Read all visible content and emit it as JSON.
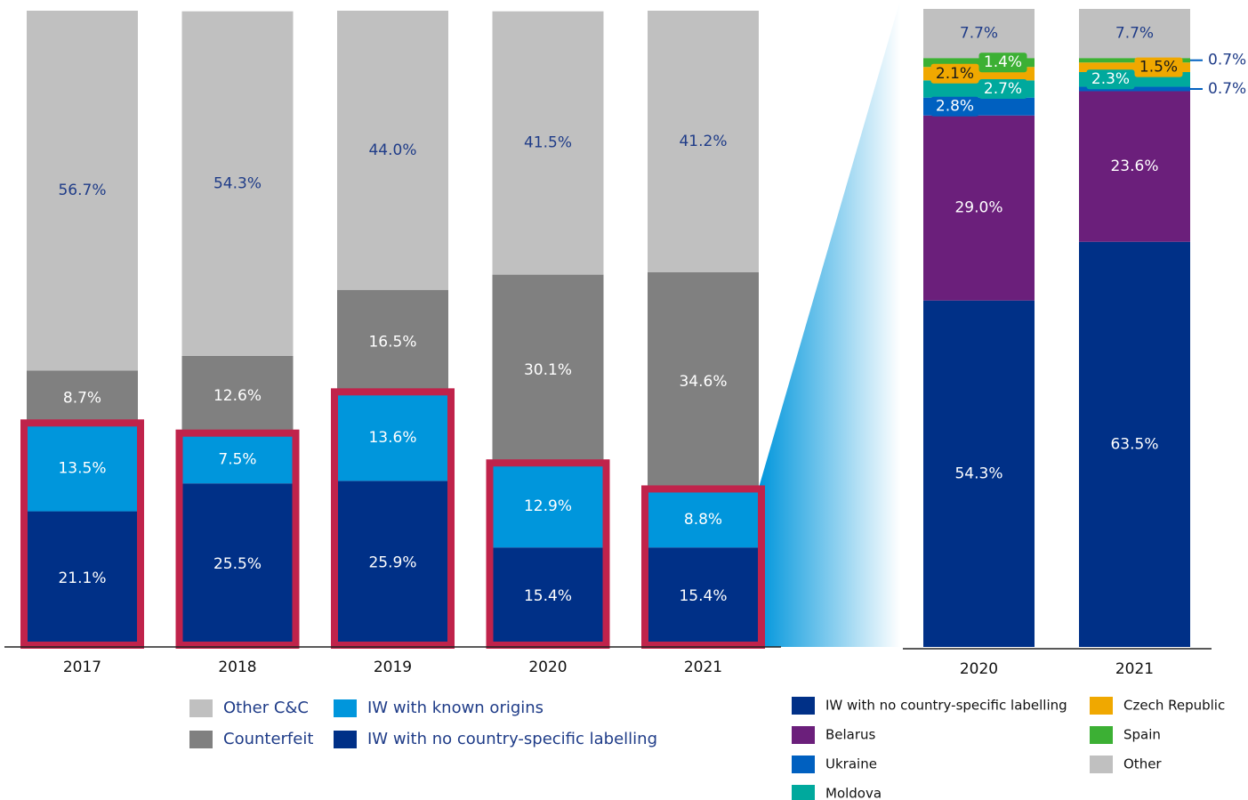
{
  "chart_data": [
    {
      "type": "stacked_bar",
      "categories": [
        "2017",
        "2018",
        "2019",
        "2020",
        "2021"
      ],
      "series": [
        {
          "name": "IW with no country-specific labelling",
          "color": "#003087",
          "values": [
            21.1,
            25.5,
            25.9,
            15.4,
            15.4
          ],
          "value_labels": [
            "21.1%",
            "25.5%",
            "25.9%",
            "15.4%",
            "15.4%"
          ]
        },
        {
          "name": "IW with known origins",
          "color": "#0096dc",
          "values": [
            13.5,
            7.5,
            13.6,
            12.9,
            8.8
          ],
          "value_labels": [
            "13.5%",
            "7.5%",
            "13.6%",
            "12.9%",
            "8.8%"
          ]
        },
        {
          "name": "Counterfeit",
          "color": "#808080",
          "values": [
            8.7,
            12.6,
            16.5,
            30.1,
            34.6
          ],
          "value_labels": [
            "8.7%",
            "12.6%",
            "16.5%",
            "30.1%",
            "34.6%"
          ]
        },
        {
          "name": "Other C&C",
          "color": "#c0c0c0",
          "values": [
            56.7,
            54.3,
            44.0,
            41.5,
            41.2
          ],
          "value_labels": [
            "56.7%",
            "54.3%",
            "44.0%",
            "41.5%",
            "41.2%"
          ]
        }
      ]
    },
    {
      "type": "stacked_bar",
      "categories": [
        "2020",
        "2021"
      ],
      "series": [
        {
          "name": "IW with no country-specific labelling",
          "color": "#003087",
          "values": [
            54.3,
            63.5
          ],
          "value_labels": [
            "54.3%",
            "63.5%"
          ]
        },
        {
          "name": "Belarus",
          "color": "#6b1f7b",
          "values": [
            29.0,
            23.6
          ],
          "value_labels": [
            "29.0%",
            "23.6%"
          ]
        },
        {
          "name": "Ukraine",
          "color": "#0060c0",
          "values": [
            2.8,
            0.7
          ],
          "value_labels": [
            "2.8%",
            "0.7%"
          ]
        },
        {
          "name": "Moldova",
          "color": "#00a99d",
          "values": [
            2.7,
            2.3
          ],
          "value_labels": [
            "2.7%",
            "2.3%"
          ]
        },
        {
          "name": "Czech Republic",
          "color": "#f0a800",
          "values": [
            2.1,
            1.5
          ],
          "value_labels": [
            "2.1%",
            "1.5%"
          ]
        },
        {
          "name": "Spain",
          "color": "#3cb034",
          "values": [
            1.4,
            0.7
          ],
          "value_labels": [
            "1.4%",
            "0.7%"
          ]
        },
        {
          "name": "Other",
          "color": "#c0c0c0",
          "values": [
            7.7,
            7.7
          ],
          "value_labels": [
            "7.7%",
            "7.7%"
          ]
        }
      ]
    }
  ]
}
